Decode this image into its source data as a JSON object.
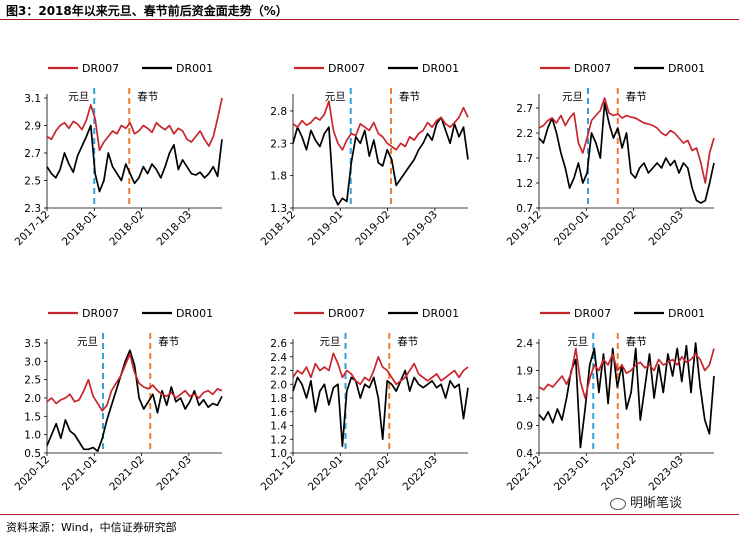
{
  "figure_title": "图3：2018年以来元旦、春节前后资金面走势（%）",
  "source": "资料来源：Wind，中信证券研究部",
  "watermark": "明晰笔谈",
  "colors": {
    "DR007": "#c8252c",
    "DR001": "#000000",
    "yuandan": "#33a1de",
    "chunjie": "#ed7d31",
    "rule": "#b11d2b"
  },
  "chart_data": [
    {
      "type": "line",
      "legend": [
        "DR007",
        "DR001"
      ],
      "x_ticks": [
        "2017-12",
        "2018-01",
        "2018-02",
        "2018-03"
      ],
      "ylim": [
        2.3,
        3.1
      ],
      "y_ticks": [
        "3.1",
        "2.9",
        "2.7",
        "2.5",
        "2.3"
      ],
      "annotations": [
        {
          "label": "元旦",
          "x": 0.27,
          "style": "blue-dashed"
        },
        {
          "label": "春节",
          "x": 0.47,
          "style": "orange-dashed"
        }
      ],
      "series": [
        {
          "name": "DR007",
          "values": [
            2.82,
            2.8,
            2.86,
            2.9,
            2.92,
            2.88,
            2.93,
            2.91,
            2.87,
            2.94,
            3.05,
            2.95,
            2.72,
            2.78,
            2.82,
            2.86,
            2.84,
            2.9,
            2.88,
            2.92,
            2.84,
            2.86,
            2.9,
            2.88,
            2.85,
            2.92,
            2.89,
            2.87,
            2.9,
            2.84,
            2.88,
            2.86,
            2.8,
            2.78,
            2.82,
            2.86,
            2.8,
            2.75,
            2.82,
            2.95,
            3.1
          ]
        },
        {
          "name": "DR001",
          "values": [
            2.6,
            2.55,
            2.52,
            2.58,
            2.7,
            2.62,
            2.56,
            2.68,
            2.75,
            2.82,
            2.9,
            2.55,
            2.42,
            2.5,
            2.7,
            2.6,
            2.55,
            2.5,
            2.62,
            2.55,
            2.48,
            2.52,
            2.6,
            2.55,
            2.62,
            2.58,
            2.52,
            2.6,
            2.7,
            2.76,
            2.58,
            2.65,
            2.6,
            2.55,
            2.54,
            2.56,
            2.52,
            2.55,
            2.6,
            2.53,
            2.8
          ]
        }
      ]
    },
    {
      "type": "line",
      "legend": [
        "DR007",
        "DR001"
      ],
      "x_ticks": [
        "2018-12",
        "2019-01",
        "2019-02",
        "2019-03"
      ],
      "ylim": [
        1.3,
        3.0
      ],
      "y_ticks": [
        "2.8",
        "2.3",
        "1.8",
        "1.3"
      ],
      "annotations": [
        {
          "label": "元旦",
          "x": 0.33,
          "style": "blue-dashed"
        },
        {
          "label": "春节",
          "x": 0.56,
          "style": "orange-dashed"
        }
      ],
      "series": [
        {
          "name": "DR007",
          "values": [
            2.6,
            2.55,
            2.65,
            2.58,
            2.62,
            2.7,
            2.66,
            2.75,
            2.95,
            2.5,
            2.3,
            2.2,
            2.35,
            2.45,
            2.42,
            2.6,
            2.55,
            2.5,
            2.62,
            2.45,
            2.4,
            2.3,
            2.25,
            2.2,
            2.3,
            2.25,
            2.4,
            2.35,
            2.45,
            2.5,
            2.62,
            2.55,
            2.65,
            2.7,
            2.6,
            2.55,
            2.62,
            2.7,
            2.85,
            2.7
          ]
        },
        {
          "name": "DR001",
          "values": [
            2.3,
            2.55,
            2.4,
            2.2,
            2.5,
            2.35,
            2.25,
            2.45,
            2.55,
            1.5,
            1.35,
            1.45,
            1.4,
            2.0,
            2.4,
            2.3,
            2.5,
            2.1,
            2.35,
            2.0,
            1.95,
            2.2,
            2.05,
            1.65,
            1.75,
            1.85,
            1.95,
            2.05,
            2.2,
            2.3,
            2.45,
            2.35,
            2.6,
            2.7,
            2.5,
            2.3,
            2.6,
            2.4,
            2.55,
            2.05
          ]
        }
      ]
    },
    {
      "type": "line",
      "legend": [
        "DR007",
        "DR001"
      ],
      "x_ticks": [
        "2019-12",
        "2020-01",
        "2020-02",
        "2020-03"
      ],
      "ylim": [
        0.7,
        2.9
      ],
      "y_ticks": [
        "2.7",
        "2.2",
        "1.7",
        "1.2",
        "0.7"
      ],
      "annotations": [
        {
          "label": "元旦",
          "x": 0.28,
          "style": "blue-dashed"
        },
        {
          "label": "春节",
          "x": 0.45,
          "style": "orange-dashed"
        }
      ],
      "series": [
        {
          "name": "DR007",
          "values": [
            2.3,
            2.35,
            2.45,
            2.5,
            2.4,
            2.55,
            2.35,
            2.5,
            2.6,
            2.0,
            1.8,
            2.1,
            2.45,
            2.55,
            2.65,
            2.9,
            2.6,
            2.55,
            2.58,
            2.5,
            2.55,
            2.52,
            2.5,
            2.45,
            2.4,
            2.38,
            2.35,
            2.3,
            2.2,
            2.15,
            2.25,
            2.2,
            2.1,
            2.0,
            2.05,
            1.85,
            1.9,
            1.6,
            1.2,
            1.8,
            2.1
          ]
        },
        {
          "name": "DR001",
          "values": [
            2.1,
            2.0,
            2.3,
            2.5,
            2.2,
            1.8,
            1.5,
            1.1,
            1.3,
            1.6,
            1.2,
            1.4,
            2.2,
            2.0,
            1.7,
            2.8,
            2.4,
            2.1,
            2.3,
            1.9,
            2.2,
            1.4,
            1.3,
            1.5,
            1.6,
            1.4,
            1.5,
            1.6,
            1.5,
            1.7,
            1.55,
            1.65,
            1.4,
            1.6,
            1.5,
            1.1,
            0.85,
            0.8,
            0.85,
            1.2,
            1.6
          ]
        }
      ]
    },
    {
      "type": "line",
      "legend": [
        "DR007",
        "DR001"
      ],
      "x_ticks": [
        "2020-12",
        "2021-01",
        "2021-02",
        "2021-03"
      ],
      "ylim": [
        0.5,
        3.5
      ],
      "y_ticks": [
        "3.5",
        "3.0",
        "2.5",
        "2.0",
        "1.5",
        "1.0",
        "0.5"
      ],
      "annotations": [
        {
          "label": "元旦",
          "x": 0.32,
          "style": "blue-dashed"
        },
        {
          "label": "春节",
          "x": 0.59,
          "style": "orange-dashed"
        }
      ],
      "series": [
        {
          "name": "DR007",
          "values": [
            1.9,
            2.0,
            1.85,
            1.95,
            2.0,
            2.1,
            1.9,
            1.95,
            2.2,
            2.5,
            2.05,
            1.85,
            1.65,
            1.8,
            2.2,
            2.4,
            2.6,
            2.9,
            3.2,
            2.7,
            2.4,
            2.3,
            2.25,
            2.35,
            2.2,
            2.1,
            2.05,
            2.15,
            2.0,
            2.1,
            2.2,
            2.05,
            2.1,
            2.0,
            2.15,
            2.2,
            2.1,
            2.25,
            2.2
          ]
        },
        {
          "name": "DR001",
          "values": [
            0.7,
            1.0,
            1.3,
            0.9,
            1.4,
            1.1,
            1.0,
            0.8,
            0.6,
            0.6,
            0.65,
            0.55,
            0.9,
            1.4,
            1.8,
            2.2,
            2.6,
            3.0,
            3.3,
            2.9,
            2.0,
            1.7,
            1.9,
            2.1,
            1.6,
            2.2,
            1.8,
            2.3,
            1.9,
            2.0,
            1.7,
            1.9,
            2.2,
            1.8,
            1.95,
            1.75,
            1.85,
            1.8,
            2.05
          ]
        }
      ]
    },
    {
      "type": "line",
      "legend": [
        "DR007",
        "DR001"
      ],
      "x_ticks": [
        "2021-12",
        "2022-01",
        "2022-02",
        "2022-03"
      ],
      "ylim": [
        1.0,
        2.6
      ],
      "y_ticks": [
        "2.6",
        "2.4",
        "2.2",
        "2.0",
        "1.8",
        "1.6",
        "1.4",
        "1.2",
        "1.0"
      ],
      "annotations": [
        {
          "label": "元旦",
          "x": 0.3,
          "style": "blue-dashed"
        },
        {
          "label": "春节",
          "x": 0.55,
          "style": "orange-dashed"
        }
      ],
      "series": [
        {
          "name": "DR007",
          "values": [
            2.1,
            2.2,
            2.15,
            2.25,
            2.1,
            2.3,
            2.2,
            2.25,
            2.2,
            2.45,
            2.3,
            2.1,
            2.2,
            2.15,
            2.05,
            2.0,
            2.1,
            2.05,
            2.2,
            2.4,
            2.25,
            2.2,
            2.1,
            2.0,
            2.05,
            2.1,
            2.2,
            2.3,
            2.15,
            2.1,
            2.05,
            2.1,
            2.15,
            2.05,
            2.1,
            2.15,
            2.2,
            2.1,
            2.2,
            2.25
          ]
        },
        {
          "name": "DR001",
          "values": [
            1.9,
            2.1,
            2.0,
            1.8,
            2.05,
            1.6,
            1.9,
            2.0,
            1.7,
            1.95,
            2.0,
            1.1,
            1.9,
            2.1,
            2.05,
            1.8,
            2.0,
            1.95,
            2.1,
            1.8,
            1.2,
            2.05,
            2.0,
            1.9,
            2.05,
            2.2,
            1.9,
            2.1,
            2.0,
            1.95,
            2.0,
            2.05,
            1.95,
            2.0,
            1.8,
            2.05,
            1.95,
            2.0,
            1.5,
            1.95
          ]
        }
      ]
    },
    {
      "type": "line",
      "legend": [
        "DR007",
        "DR001"
      ],
      "x_ticks": [
        "2022-12",
        "2023-01",
        "2023-02",
        "2023-03"
      ],
      "ylim": [
        0.4,
        2.4
      ],
      "y_ticks": [
        "2.4",
        "1.9",
        "1.4",
        "0.9",
        "0.4"
      ],
      "annotations": [
        {
          "label": "元旦",
          "x": 0.31,
          "style": "blue-dashed"
        },
        {
          "label": "春节",
          "x": 0.45,
          "style": "orange-dashed"
        }
      ],
      "series": [
        {
          "name": "DR007",
          "values": [
            1.6,
            1.55,
            1.65,
            1.6,
            1.7,
            1.8,
            1.65,
            1.85,
            2.3,
            1.7,
            1.4,
            1.75,
            2.0,
            1.9,
            2.1,
            2.0,
            2.2,
            1.9,
            2.0,
            1.85,
            1.9,
            2.0,
            2.05,
            1.95,
            2.0,
            1.9,
            2.1,
            2.0,
            2.05,
            2.1,
            2.0,
            2.15,
            2.05,
            2.1,
            2.2,
            2.1,
            1.9,
            2.0,
            2.3
          ]
        },
        {
          "name": "DR001",
          "values": [
            1.1,
            1.0,
            1.15,
            0.95,
            1.2,
            1.0,
            1.4,
            1.9,
            2.1,
            0.5,
            1.2,
            2.0,
            2.3,
            1.5,
            2.2,
            1.3,
            2.3,
            1.6,
            2.0,
            1.2,
            1.5,
            2.3,
            1.0,
            1.6,
            2.2,
            1.4,
            2.0,
            1.5,
            2.2,
            1.8,
            2.3,
            1.7,
            2.35,
            1.5,
            2.4,
            1.6,
            1.0,
            0.75,
            1.8
          ]
        }
      ]
    }
  ]
}
